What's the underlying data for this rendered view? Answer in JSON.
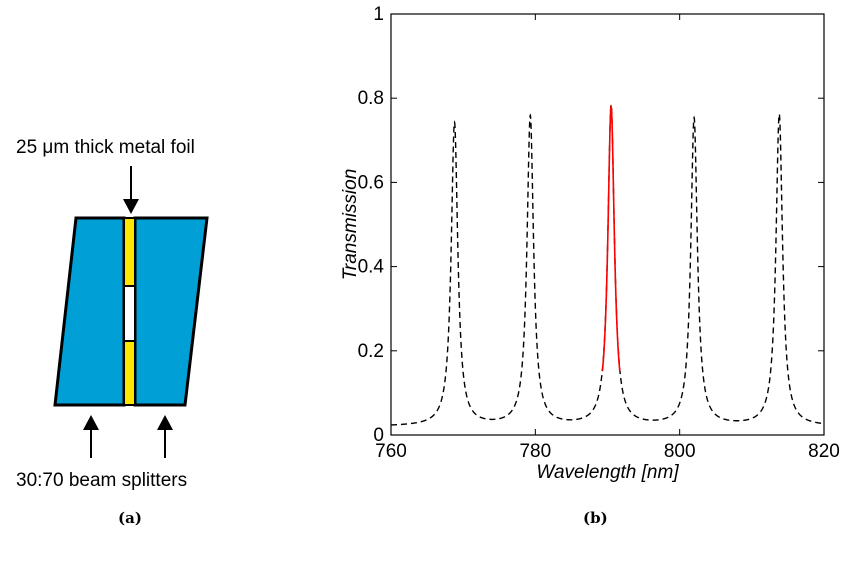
{
  "panel_a": {
    "caption": "(a)",
    "foil_label": "25 μm thick metal foil",
    "splitter_label": "30:70 beam splitters"
  },
  "panel_b": {
    "caption": "(b)"
  },
  "chart_data": {
    "type": "line",
    "title": "",
    "xlabel": "Wavelength [nm]",
    "ylabel": "Transmission",
    "xlim": [
      760,
      820
    ],
    "ylim": [
      0,
      1
    ],
    "xticks": [
      760,
      780,
      800,
      820
    ],
    "yticks": [
      0,
      0.2,
      0.4,
      0.6,
      0.8,
      1
    ],
    "ytick_labels": [
      "0",
      "0.2",
      "0.4",
      "0.6",
      "0.8",
      "1"
    ],
    "grid": false,
    "series": [
      {
        "style": "dashed",
        "color": "#000000",
        "peaks": [
          {
            "x": 768.8,
            "y": 0.74
          },
          {
            "x": 779.3,
            "y": 0.755
          },
          {
            "x": 790.5,
            "y": 0.78
          },
          {
            "x": 802.0,
            "y": 0.75
          },
          {
            "x": 813.8,
            "y": 0.76
          }
        ],
        "baseline": 0.02
      },
      {
        "style": "solid",
        "color": "#ff0000",
        "x_range": [
          789.3,
          791.7
        ],
        "peak": {
          "x": 790.5,
          "y": 0.78
        }
      }
    ]
  }
}
